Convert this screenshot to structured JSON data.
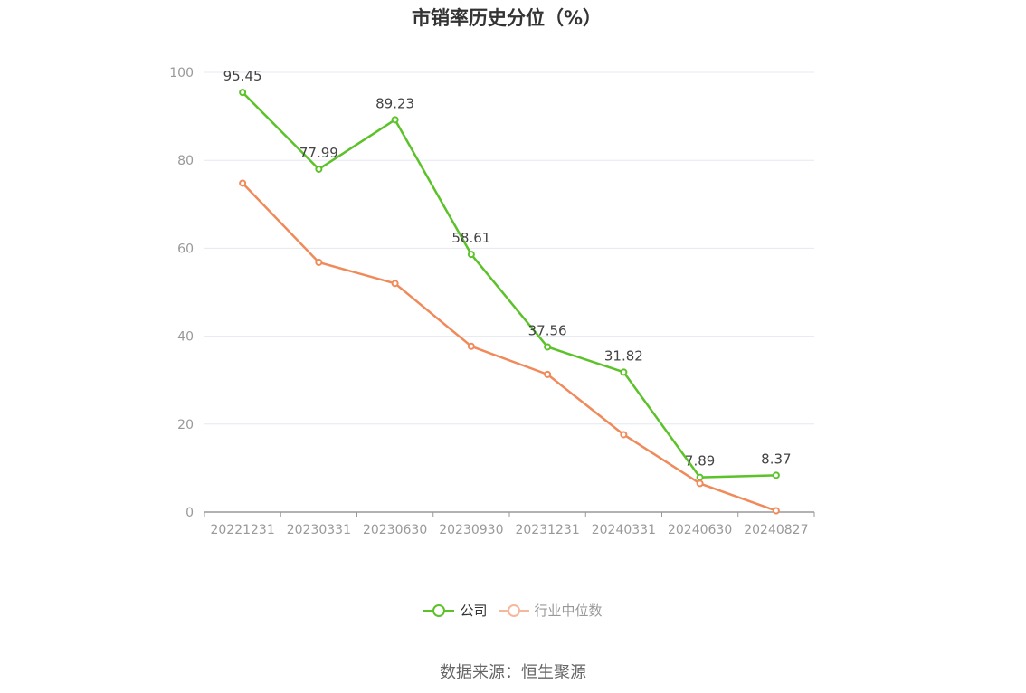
{
  "chart_data": {
    "type": "line",
    "title": "市销率历史分位（%）",
    "categories": [
      "20221231",
      "20230331",
      "20230630",
      "20230930",
      "20231231",
      "20240331",
      "20240630",
      "20240827"
    ],
    "series": [
      {
        "name": "公司",
        "color": "#5cc22a",
        "values": [
          95.45,
          77.99,
          89.23,
          58.61,
          37.56,
          31.82,
          7.89,
          8.37
        ],
        "labels": [
          "95.45",
          "77.99",
          "89.23",
          "58.61",
          "37.56",
          "31.82",
          "7.89",
          "8.37"
        ]
      },
      {
        "name": "行业中位数",
        "color": "#f08a5a",
        "legend_color": "#f5b89c",
        "values": [
          74.8,
          56.8,
          52.0,
          37.7,
          31.3,
          17.6,
          6.5,
          0.3
        ]
      }
    ],
    "ylim": [
      0,
      100
    ],
    "yticks": [
      "0",
      "20",
      "40",
      "60",
      "80",
      "100"
    ],
    "grid": true,
    "legend_position": "bottom"
  },
  "source": "数据来源：恒生聚源"
}
